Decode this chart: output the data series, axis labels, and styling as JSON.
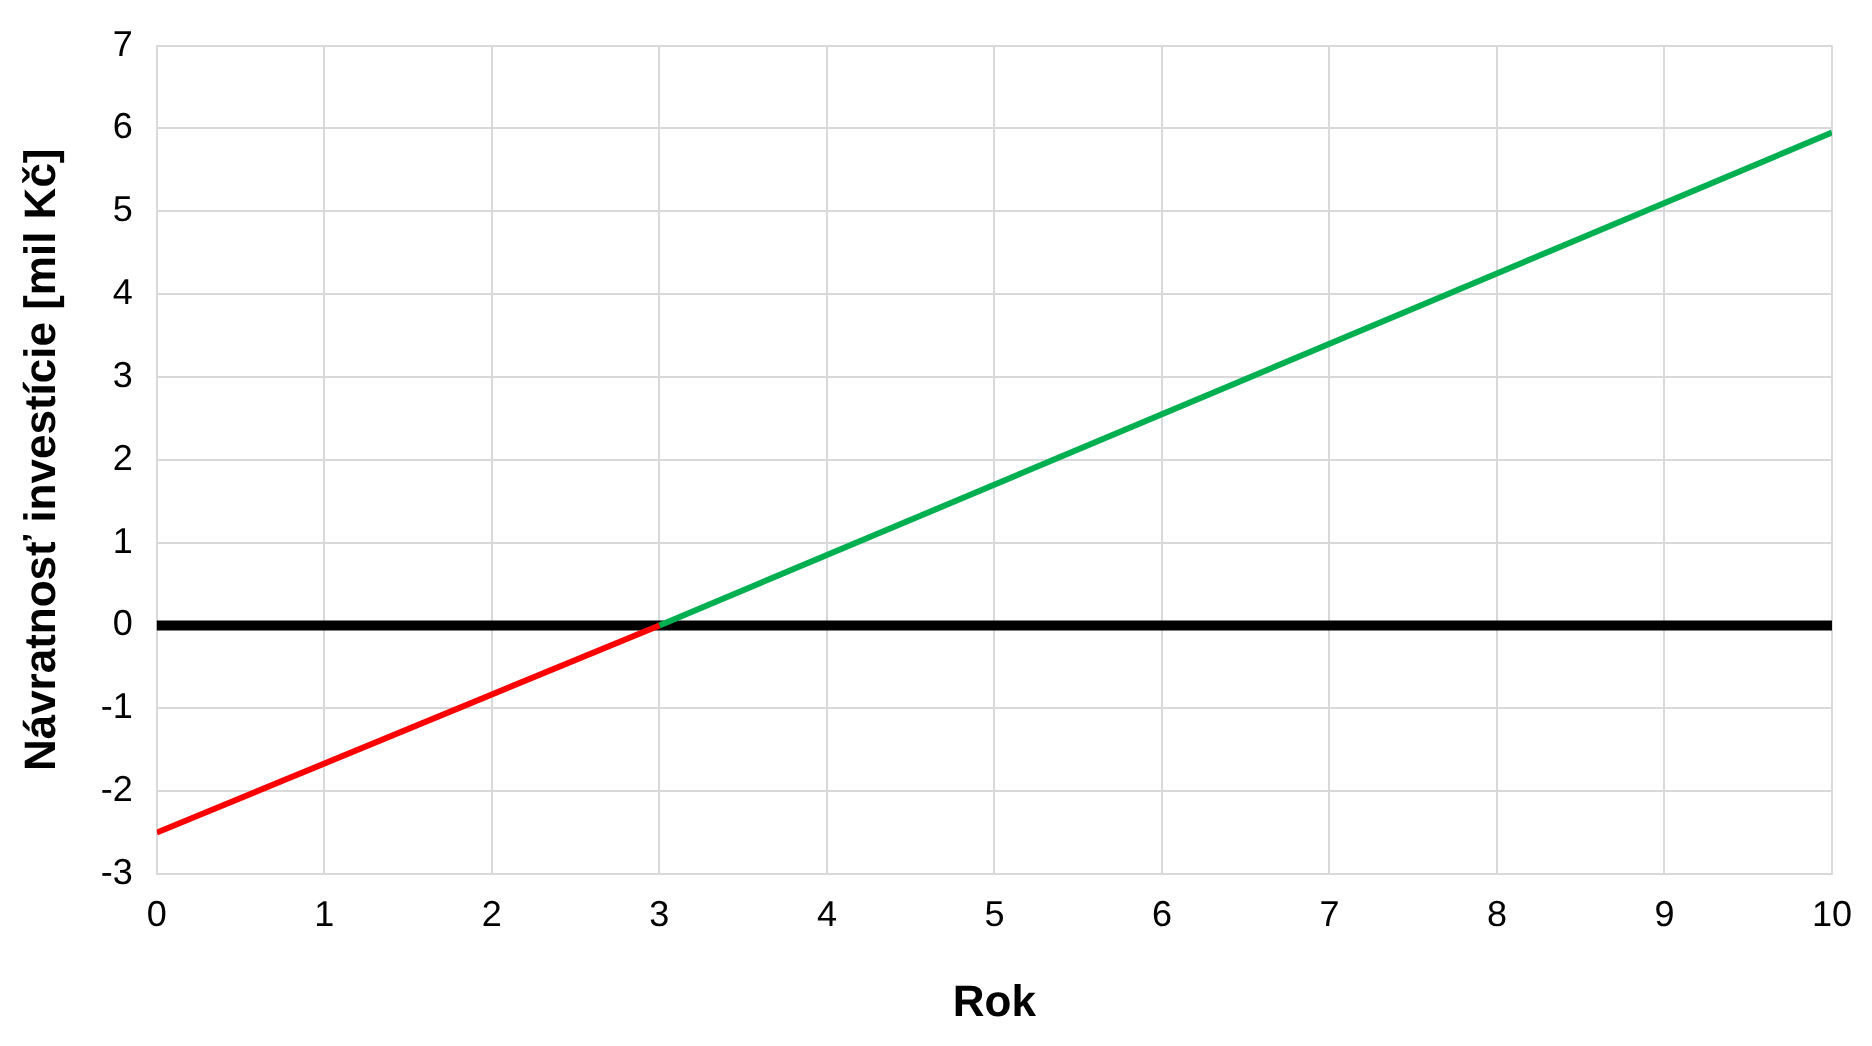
{
  "chart_data": {
    "type": "line",
    "xlabel": "Rok",
    "ylabel": "Návratnosť investície [mil Kč]",
    "series": [
      {
        "color": "#ff0000",
        "x": [
          0,
          3
        ],
        "values": [
          -2.5,
          0
        ]
      },
      {
        "color": "#00b050",
        "x": [
          3,
          10
        ],
        "values": [
          0,
          5.95
        ]
      }
    ],
    "xlim": [
      0,
      10
    ],
    "xticks": [
      0,
      1,
      2,
      3,
      4,
      5,
      6,
      7,
      8,
      9,
      10
    ],
    "ylim": [
      -3,
      7
    ],
    "yticks": [
      -3,
      -2,
      -1,
      0,
      1,
      2,
      3,
      4,
      5,
      6,
      7
    ],
    "ref_lines": [
      {
        "axis": "y",
        "value": 0,
        "color": "#000000"
      }
    ],
    "grid": true,
    "legend": false,
    "marker": "none",
    "line_style": "solid"
  }
}
